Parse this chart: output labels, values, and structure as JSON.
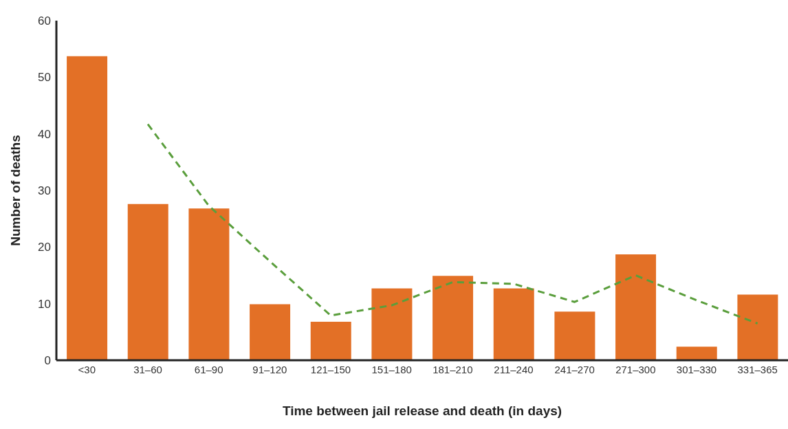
{
  "chart_data": {
    "type": "bar",
    "xlabel": "Time between jail release and death (in days)",
    "ylabel": "Number of deaths",
    "categories": [
      "<30",
      "31–60",
      "61–90",
      "91–120",
      "121–150",
      "151–180",
      "181–210",
      "211–240",
      "241–270",
      "271–300",
      "301–330",
      "331–365"
    ],
    "series": [
      {
        "color": "#e37026",
        "values": [
          53.7,
          27.6,
          26.8,
          9.9,
          6.8,
          12.7,
          14.9,
          12.7,
          8.6,
          18.7,
          2.4,
          11.6
        ]
      },
      {
        "type": "line",
        "color": "#5a9e3c",
        "line_style": "dashed",
        "marker": "none",
        "values": [
          null,
          41.7,
          27.3,
          17.5,
          7.9,
          9.7,
          13.8,
          13.5,
          10.3,
          15.0,
          10.6,
          6.5
        ]
      }
    ],
    "ylim": [
      0,
      60
    ],
    "yticks": [
      0,
      10,
      20,
      30,
      40,
      50,
      60
    ],
    "grid": false,
    "legend": false
  }
}
